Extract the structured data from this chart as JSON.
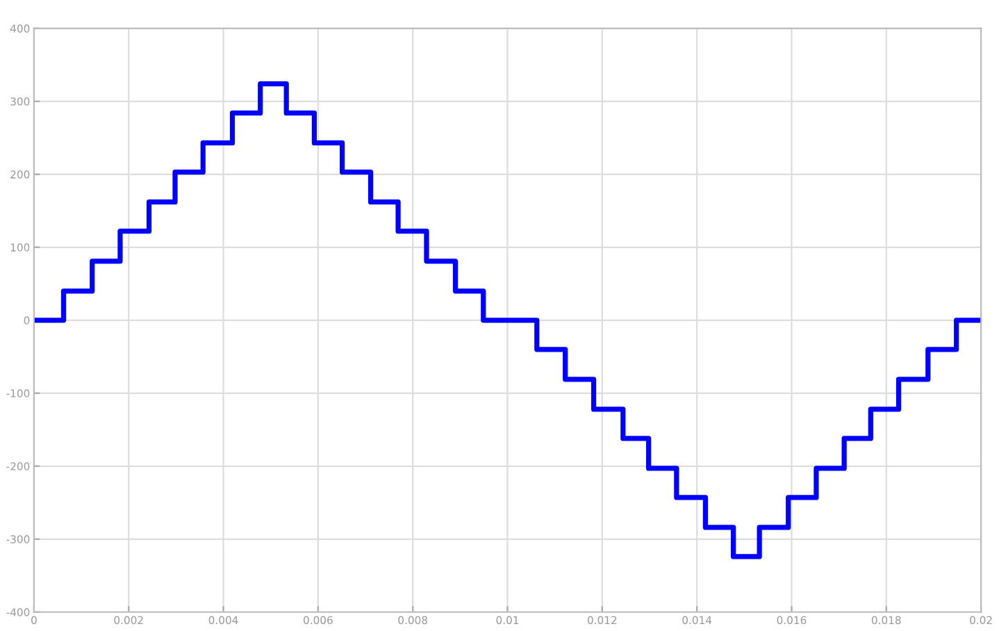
{
  "chart_data": {
    "type": "step",
    "x": [
      0,
      0.000625,
      0.00123,
      0.00182,
      0.00243,
      0.00298,
      0.00357,
      0.00419,
      0.00478,
      0.00533,
      0.00592,
      0.00651,
      0.00711,
      0.00769,
      0.00829,
      0.0089,
      0.00949,
      0.01062,
      0.01122,
      0.01182,
      0.01244,
      0.01298,
      0.01357,
      0.01418,
      0.01477,
      0.01532,
      0.01593,
      0.01652,
      0.01711,
      0.01767,
      0.01826,
      0.01888,
      0.01948,
      0.02
    ],
    "series": [
      {
        "color": "#0000ff",
        "values": [
          0,
          40,
          81,
          122,
          162,
          203,
          243,
          284,
          324,
          284,
          243,
          203,
          162,
          122,
          81,
          40,
          0,
          -40,
          -81,
          -122,
          -162,
          -203,
          -243,
          -284,
          -324,
          -284,
          -243,
          -203,
          -162,
          -122,
          -81,
          -40,
          0,
          0
        ]
      }
    ],
    "xlim": [
      0,
      0.02
    ],
    "ylim": [
      -400,
      400
    ],
    "xticks": [
      0,
      0.002,
      0.004,
      0.006,
      0.008,
      0.01,
      0.012,
      0.014,
      0.016,
      0.018,
      0.02
    ],
    "yticks": [
      -400,
      -300,
      -200,
      -100,
      0,
      100,
      200,
      300,
      400
    ],
    "grid": true
  }
}
